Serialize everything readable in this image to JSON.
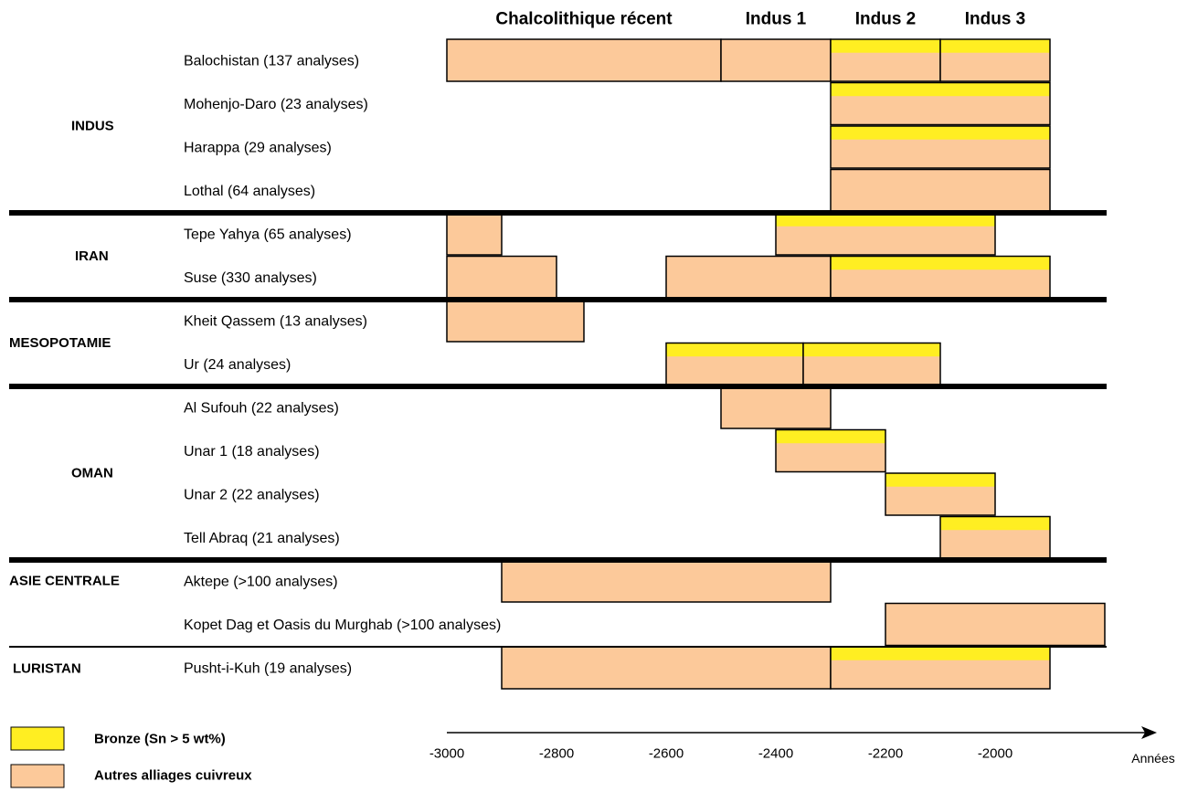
{
  "chart_data": {
    "type": "gantt",
    "xlabel": "Années",
    "x_range": [
      -3000,
      -2000
    ],
    "ticks": [
      -3000,
      -2800,
      -2600,
      -2400,
      -2200,
      -2000
    ],
    "periods": [
      {
        "label": "Chalcolithique récent",
        "start": -3000,
        "end": -2500
      },
      {
        "label": "Indus 1",
        "start": -2500,
        "end": -2300
      },
      {
        "label": "Indus 2",
        "start": -2300,
        "end": -2100
      },
      {
        "label": "Indus 3",
        "start": -2100,
        "end": -1900
      }
    ],
    "legend": [
      {
        "key": "bronze",
        "label": "Bronze (Sn > 5 wt%)",
        "color": "#ffee22"
      },
      {
        "key": "other",
        "label": "Autres alliages cuivreux",
        "color": "#fcc99a"
      }
    ],
    "groups": [
      {
        "region": "INDUS",
        "sites": [
          {
            "name": "Balochistan (137 analyses)",
            "bars": [
              {
                "start": -3000,
                "end": -2500,
                "bronze": false
              },
              {
                "start": -2500,
                "end": -2300,
                "bronze": false
              },
              {
                "start": -2300,
                "end": -2100,
                "bronze": true
              },
              {
                "start": -2100,
                "end": -1900,
                "bronze": true
              }
            ]
          },
          {
            "name": "Mohenjo-Daro (23 analyses)",
            "bars": [
              {
                "start": -2300,
                "end": -1900,
                "bronze": true
              }
            ]
          },
          {
            "name": "Harappa (29 analyses)",
            "bars": [
              {
                "start": -2300,
                "end": -1900,
                "bronze": true
              }
            ]
          },
          {
            "name": "Lothal (64 analyses)",
            "bars": [
              {
                "start": -2300,
                "end": -1900,
                "bronze": false
              }
            ]
          }
        ]
      },
      {
        "region": "IRAN",
        "sites": [
          {
            "name": "Tepe Yahya (65 analyses)",
            "bars": [
              {
                "start": -3000,
                "end": -2900,
                "bronze": false
              },
              {
                "start": -2400,
                "end": -2000,
                "bronze": true
              }
            ]
          },
          {
            "name": "Suse (330 analyses)",
            "bars": [
              {
                "start": -3000,
                "end": -2800,
                "bronze": false
              },
              {
                "start": -2600,
                "end": -2300,
                "bronze": false
              },
              {
                "start": -2300,
                "end": -1900,
                "bronze": true
              }
            ]
          }
        ]
      },
      {
        "region": "MESOPOTAMIE",
        "sites": [
          {
            "name": "Kheit Qassem (13 analyses)",
            "bars": [
              {
                "start": -3000,
                "end": -2750,
                "bronze": false
              }
            ]
          },
          {
            "name": "Ur (24 analyses)",
            "bars": [
              {
                "start": -2600,
                "end": -2350,
                "bronze": true
              },
              {
                "start": -2350,
                "end": -2100,
                "bronze": true
              }
            ]
          }
        ]
      },
      {
        "region": "OMAN",
        "sites": [
          {
            "name": "Al Sufouh (22 analyses)",
            "bars": [
              {
                "start": -2500,
                "end": -2300,
                "bronze": false
              }
            ]
          },
          {
            "name": "Unar 1 (18 analyses)",
            "bars": [
              {
                "start": -2400,
                "end": -2200,
                "bronze": true
              }
            ]
          },
          {
            "name": "Unar 2 (22 analyses)",
            "bars": [
              {
                "start": -2200,
                "end": -2000,
                "bronze": true
              }
            ]
          },
          {
            "name": "Tell Abraq (21 analyses)",
            "bars": [
              {
                "start": -2100,
                "end": -1900,
                "bronze": true
              }
            ]
          }
        ]
      },
      {
        "region": "ASIE CENTRALE",
        "sites": [
          {
            "name": "Aktepe (>100 analyses)",
            "bars": [
              {
                "start": -2900,
                "end": -2300,
                "bronze": false
              }
            ]
          },
          {
            "name": "Kopet Dag et Oasis du Murghab (>100 analyses)",
            "bars": [
              {
                "start": -2200,
                "end": -1800,
                "bronze": false
              }
            ]
          }
        ]
      },
      {
        "region": "LURISTAN",
        "sites": [
          {
            "name": "Pusht-i-Kuh (19 analyses)",
            "bars": [
              {
                "start": -2900,
                "end": -2300,
                "bronze": false
              },
              {
                "start": -2300,
                "end": -1900,
                "bronze": true
              }
            ]
          }
        ]
      }
    ]
  }
}
